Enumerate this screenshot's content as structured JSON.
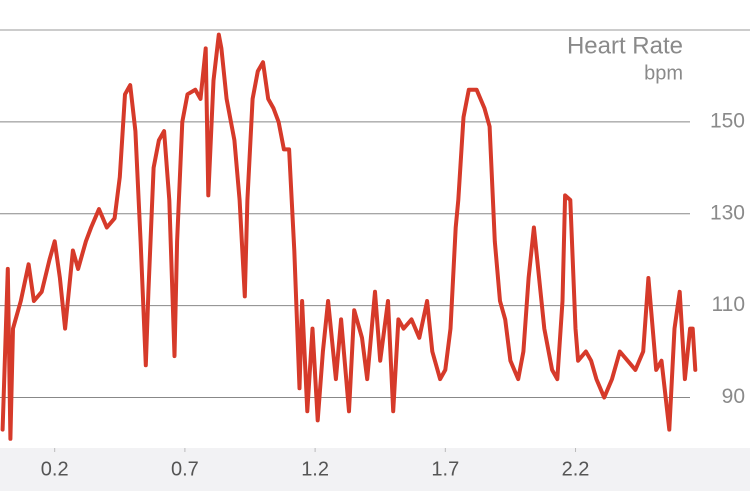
{
  "chart_data": {
    "type": "line",
    "title": "Heart Rate",
    "subtitle": "bpm",
    "x": [
      0.0,
      0.02,
      0.03,
      0.04,
      0.07,
      0.1,
      0.12,
      0.15,
      0.18,
      0.2,
      0.22,
      0.24,
      0.27,
      0.29,
      0.32,
      0.34,
      0.37,
      0.4,
      0.43,
      0.45,
      0.47,
      0.49,
      0.51,
      0.53,
      0.55,
      0.56,
      0.58,
      0.6,
      0.62,
      0.64,
      0.66,
      0.67,
      0.69,
      0.71,
      0.74,
      0.76,
      0.78,
      0.79,
      0.81,
      0.83,
      0.84,
      0.86,
      0.89,
      0.91,
      0.93,
      0.94,
      0.96,
      0.98,
      1.0,
      1.02,
      1.04,
      1.06,
      1.08,
      1.1,
      1.12,
      1.14,
      1.15,
      1.17,
      1.19,
      1.21,
      1.23,
      1.25,
      1.28,
      1.3,
      1.33,
      1.35,
      1.38,
      1.4,
      1.43,
      1.45,
      1.48,
      1.5,
      1.52,
      1.54,
      1.57,
      1.6,
      1.63,
      1.65,
      1.68,
      1.7,
      1.72,
      1.74,
      1.75,
      1.77,
      1.79,
      1.82,
      1.85,
      1.87,
      1.89,
      1.91,
      1.93,
      1.95,
      1.98,
      2.0,
      2.02,
      2.04,
      2.06,
      2.08,
      2.11,
      2.13,
      2.15,
      2.16,
      2.18,
      2.2,
      2.21,
      2.24,
      2.26,
      2.28,
      2.31,
      2.34,
      2.37,
      2.4,
      2.43,
      2.46,
      2.48,
      2.51,
      2.53,
      2.56,
      2.58,
      2.6,
      2.62,
      2.64,
      2.65,
      2.66
    ],
    "series": [
      {
        "name": "Heart Rate",
        "color": "#d63a2a",
        "values": [
          83,
          118,
          81,
          105,
          111,
          119,
          111,
          113,
          120,
          124,
          116,
          105,
          122,
          118,
          124,
          127,
          131,
          127,
          129,
          138,
          156,
          158,
          148,
          124,
          97,
          113,
          140,
          146,
          148,
          133,
          99,
          124,
          150,
          156,
          157,
          155,
          166,
          134,
          159,
          169,
          166,
          155,
          146,
          133,
          112,
          133,
          155,
          161,
          163,
          155,
          153,
          150,
          144,
          144,
          122,
          92,
          111,
          87,
          105,
          85,
          100,
          111,
          94,
          107,
          87,
          109,
          103,
          94,
          113,
          98,
          111,
          87,
          107,
          105,
          107,
          103,
          111,
          100,
          94,
          96,
          105,
          127,
          133,
          151,
          157,
          157,
          153,
          149,
          124,
          111,
          107,
          98,
          94,
          100,
          116,
          127,
          116,
          105,
          96,
          94,
          111,
          134,
          133,
          105,
          98,
          100,
          98,
          94,
          90,
          94,
          100,
          98,
          96,
          100,
          116,
          96,
          98,
          83,
          105,
          113,
          94,
          105,
          105,
          96
        ]
      }
    ],
    "xlim": [
      -0.01,
      2.87
    ],
    "ylim": [
      79,
      170
    ],
    "xticks": [
      0.2,
      0.7,
      1.2,
      1.7,
      2.2
    ],
    "yticks": [
      90,
      110,
      130,
      150
    ],
    "grid": true
  }
}
